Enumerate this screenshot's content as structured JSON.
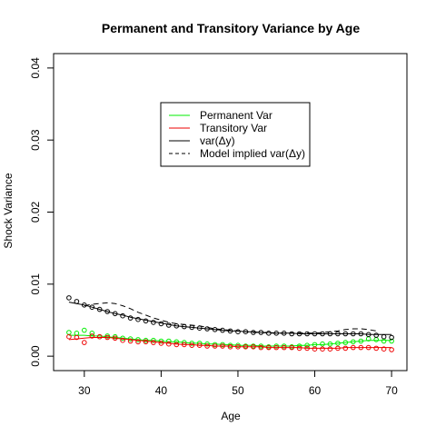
{
  "chart_data": {
    "type": "line",
    "title": "Permanent and Transitory Variance by Age",
    "xlabel": "Age",
    "ylabel": "Shock Variance",
    "xlim": [
      26,
      72
    ],
    "ylim": [
      -0.002,
      0.042
    ],
    "xticks": [
      30,
      40,
      50,
      60,
      70
    ],
    "xtick_labels": [
      "30",
      "40",
      "50",
      "60",
      "70"
    ],
    "yticks": [
      0,
      0.01,
      0.02,
      0.03,
      0.04
    ],
    "ytick_labels": [
      "0.00",
      "0.01",
      "0.02",
      "0.03",
      "0.04"
    ],
    "grid": false,
    "legend_position": "top-center",
    "series": [
      {
        "name": "Permanent Var",
        "color": "#00ee00",
        "style": "solid-line-and-circles",
        "x": [
          28,
          29,
          30,
          31,
          32,
          33,
          34,
          35,
          36,
          37,
          38,
          39,
          40,
          41,
          42,
          43,
          44,
          45,
          46,
          47,
          48,
          49,
          50,
          51,
          52,
          53,
          54,
          55,
          56,
          57,
          58,
          59,
          60,
          61,
          62,
          63,
          64,
          65,
          66,
          67,
          68,
          69,
          70
        ],
        "points": [
          0.0033,
          0.0032,
          0.0036,
          0.0032,
          0.0027,
          0.0028,
          0.0027,
          0.0025,
          0.0024,
          0.0023,
          0.0022,
          0.0022,
          0.0021,
          0.0021,
          0.002,
          0.0019,
          0.0018,
          0.0018,
          0.0017,
          0.0016,
          0.0016,
          0.0015,
          0.0015,
          0.0014,
          0.0014,
          0.0014,
          0.0013,
          0.0014,
          0.0014,
          0.0013,
          0.0014,
          0.0015,
          0.0016,
          0.0017,
          0.0017,
          0.0018,
          0.0019,
          0.002,
          0.0021,
          0.0024,
          0.0023,
          0.0021,
          0.0021
        ],
        "curve": [
          0.0029,
          0.0029,
          0.0029,
          0.0028,
          0.0028,
          0.0027,
          0.0026,
          0.0025,
          0.0024,
          0.0023,
          0.0022,
          0.0022,
          0.0021,
          0.002,
          0.002,
          0.0019,
          0.0018,
          0.0018,
          0.0017,
          0.0017,
          0.0016,
          0.0016,
          0.0015,
          0.0015,
          0.0015,
          0.0014,
          0.0014,
          0.0014,
          0.0014,
          0.0014,
          0.0015,
          0.0015,
          0.0016,
          0.0016,
          0.0017,
          0.0018,
          0.0019,
          0.002,
          0.0021,
          0.0022,
          0.0022,
          0.0022,
          0.0022
        ]
      },
      {
        "name": "Transitory Var",
        "color": "#ee0000",
        "style": "solid-line-and-circles",
        "x": [
          28,
          29,
          30,
          31,
          32,
          33,
          34,
          35,
          36,
          37,
          38,
          39,
          40,
          41,
          42,
          43,
          44,
          45,
          46,
          47,
          48,
          49,
          50,
          51,
          52,
          53,
          54,
          55,
          56,
          57,
          58,
          59,
          60,
          61,
          62,
          63,
          64,
          65,
          66,
          67,
          68,
          69,
          70
        ],
        "points": [
          0.0027,
          0.0026,
          0.0019,
          0.0028,
          0.0027,
          0.0026,
          0.0025,
          0.0022,
          0.0021,
          0.002,
          0.002,
          0.0019,
          0.0018,
          0.0017,
          0.0016,
          0.0016,
          0.0015,
          0.0015,
          0.0014,
          0.0014,
          0.0014,
          0.0013,
          0.0013,
          0.0013,
          0.0013,
          0.0012,
          0.0012,
          0.0012,
          0.0012,
          0.0012,
          0.0011,
          0.0011,
          0.001,
          0.001,
          0.001,
          0.0011,
          0.0011,
          0.0012,
          0.0012,
          0.0012,
          0.0011,
          0.001,
          0.0009
        ],
        "curve": [
          0.0023,
          0.0024,
          0.0025,
          0.0026,
          0.0026,
          0.0026,
          0.0025,
          0.0024,
          0.0023,
          0.0022,
          0.0021,
          0.002,
          0.0019,
          0.0018,
          0.0017,
          0.0016,
          0.0016,
          0.0015,
          0.0015,
          0.0014,
          0.0014,
          0.0014,
          0.0013,
          0.0013,
          0.0013,
          0.0013,
          0.0012,
          0.0012,
          0.0012,
          0.0012,
          0.0012,
          0.0011,
          0.0011,
          0.0011,
          0.0011,
          0.0011,
          0.0012,
          0.0012,
          0.0012,
          0.0012,
          0.0012,
          0.0012,
          0.0012
        ]
      },
      {
        "name": "var(Δy)",
        "color": "#000000",
        "style": "solid-line-and-circles",
        "x": [
          28,
          29,
          30,
          31,
          32,
          33,
          34,
          35,
          36,
          37,
          38,
          39,
          40,
          41,
          42,
          43,
          44,
          45,
          46,
          47,
          48,
          49,
          50,
          51,
          52,
          53,
          54,
          55,
          56,
          57,
          58,
          59,
          60,
          61,
          62,
          63,
          64,
          65,
          66,
          67,
          68,
          69,
          70
        ],
        "points": [
          0.0081,
          0.0076,
          0.0071,
          0.0068,
          0.0065,
          0.0062,
          0.0059,
          0.0056,
          0.0053,
          0.0051,
          0.0049,
          0.0047,
          0.0045,
          0.0043,
          0.0042,
          0.0041,
          0.004,
          0.0039,
          0.0038,
          0.0037,
          0.0036,
          0.0035,
          0.0034,
          0.0034,
          0.0033,
          0.0033,
          0.0032,
          0.0032,
          0.0032,
          0.0031,
          0.0031,
          0.0031,
          0.0031,
          0.0031,
          0.0031,
          0.0031,
          0.0031,
          0.0031,
          0.0031,
          0.003,
          0.0029,
          0.0027,
          0.0026
        ],
        "curve": [
          0.0075,
          0.0073,
          0.0071,
          0.0068,
          0.0065,
          0.0062,
          0.0059,
          0.0057,
          0.0054,
          0.0052,
          0.005,
          0.0048,
          0.0046,
          0.0044,
          0.0042,
          0.0041,
          0.004,
          0.0039,
          0.0038,
          0.0037,
          0.0036,
          0.0035,
          0.0035,
          0.0034,
          0.0034,
          0.0033,
          0.0033,
          0.0032,
          0.0032,
          0.0032,
          0.0031,
          0.0031,
          0.0031,
          0.0031,
          0.0031,
          0.0031,
          0.0031,
          0.0031,
          0.0031,
          0.003,
          0.003,
          0.003,
          0.003
        ]
      },
      {
        "name": "Model implied var(Δy)",
        "color": "#000000",
        "style": "dashed-line",
        "x": [
          30,
          31,
          32,
          33,
          34,
          35,
          36,
          37,
          38,
          39,
          40,
          41,
          42,
          43,
          44,
          45,
          46,
          47,
          48,
          49,
          50,
          51,
          52,
          53,
          54,
          55,
          56,
          57,
          58,
          59,
          60,
          61,
          62,
          63,
          64,
          65,
          66,
          67,
          68
        ],
        "curve": [
          0.007,
          0.0072,
          0.0073,
          0.0074,
          0.0073,
          0.007,
          0.0066,
          0.0061,
          0.0057,
          0.0053,
          0.005,
          0.0047,
          0.0045,
          0.0044,
          0.0043,
          0.0042,
          0.004,
          0.0038,
          0.0037,
          0.0036,
          0.0035,
          0.0034,
          0.0033,
          0.0033,
          0.0032,
          0.0032,
          0.0032,
          0.0032,
          0.0032,
          0.0032,
          0.0032,
          0.0033,
          0.0034,
          0.0035,
          0.0037,
          0.0038,
          0.0038,
          0.0037,
          0.0035
        ]
      }
    ]
  }
}
